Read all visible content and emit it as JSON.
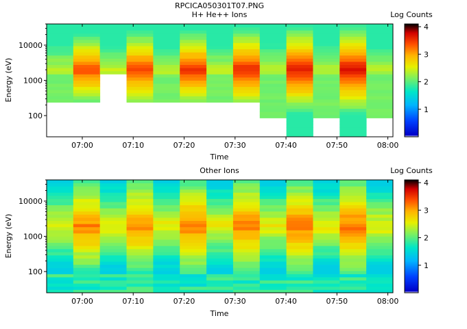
{
  "title": "RPCICA050301T07.PNG",
  "chart_data": [
    {
      "type": "heatmap",
      "title": "H+ He++ Ions",
      "xlabel": "Time",
      "ylabel": "Energy (eV)",
      "xticks": [
        "07:00",
        "07:10",
        "07:20",
        "07:30",
        "07:40",
        "07:50",
        "08:00"
      ],
      "xlim": [
        "06:53",
        "08:01"
      ],
      "yscale": "log",
      "ylim": [
        25,
        40000
      ],
      "yticks": [
        "100",
        "1000",
        "10000"
      ],
      "colorbar": {
        "label": "Log Counts",
        "range": [
          0,
          4.1
        ],
        "ticks": [
          "1",
          "2",
          "3",
          "4"
        ]
      },
      "description_values": {
        "peak_band_energy_ev": 2000,
        "peak_log_counts": 4.1,
        "low_energy_cutoff_ev": [
          250,
          250,
          1600,
          250,
          250,
          250,
          250,
          250,
          100,
          25,
          100,
          25,
          100
        ],
        "columns": 13
      }
    },
    {
      "type": "heatmap",
      "title": "Other Ions",
      "xlabel": "Time",
      "ylabel": "Energy (eV)",
      "xticks": [
        "07:00",
        "07:10",
        "07:20",
        "07:30",
        "07:40",
        "07:50",
        "08:00"
      ],
      "xlim": [
        "06:53",
        "08:01"
      ],
      "yscale": "log",
      "ylim": [
        25,
        40000
      ],
      "yticks": [
        "100",
        "1000",
        "10000"
      ],
      "colorbar": {
        "label": "Log Counts",
        "range": [
          0,
          4.1
        ],
        "ticks": [
          "1",
          "2",
          "3",
          "4"
        ]
      },
      "description_values": {
        "peak_band_energy_ev": 2000,
        "peak_log_counts": 3.4,
        "columns": 13
      }
    }
  ]
}
